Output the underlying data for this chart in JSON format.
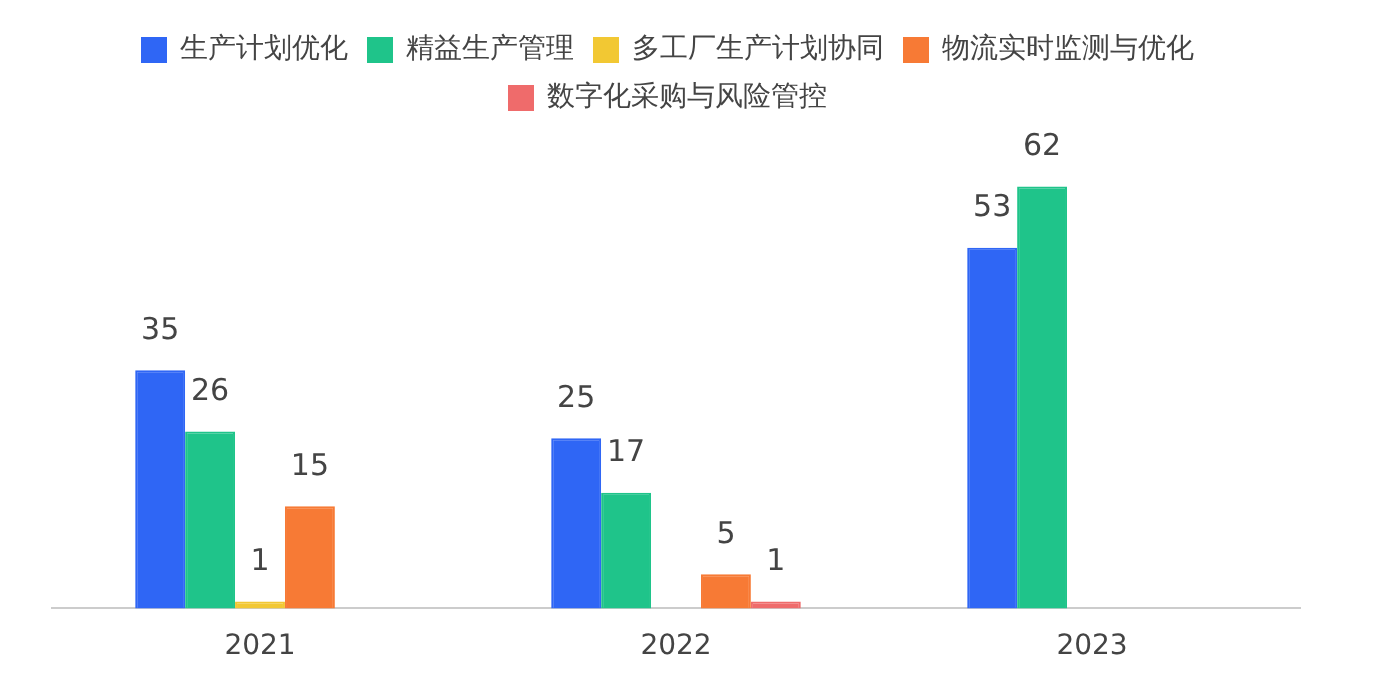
{
  "chart_data": {
    "type": "bar",
    "relative": false,
    "categories": [
      "2021",
      "2022",
      "2023"
    ],
    "data_labels": true,
    "legend": "top",
    "grid": false,
    "series": [
      {
        "name": "生产计划优化",
        "color": "#2f66f5",
        "values": [
          35,
          25,
          53
        ]
      },
      {
        "name": "精益生产管理",
        "color": "#1fc48a",
        "values": [
          26,
          17,
          62
        ]
      },
      {
        "name": "多工厂生产计划协同",
        "color": "#f2c833",
        "values": [
          1,
          null,
          null
        ]
      },
      {
        "name": "物流实时监测与优化",
        "color": "#f77a35",
        "values": [
          15,
          5,
          null
        ]
      },
      {
        "name": "数字化采购与风险管控",
        "color": "#ef6b6b",
        "values": [
          null,
          1,
          null
        ]
      }
    ]
  }
}
